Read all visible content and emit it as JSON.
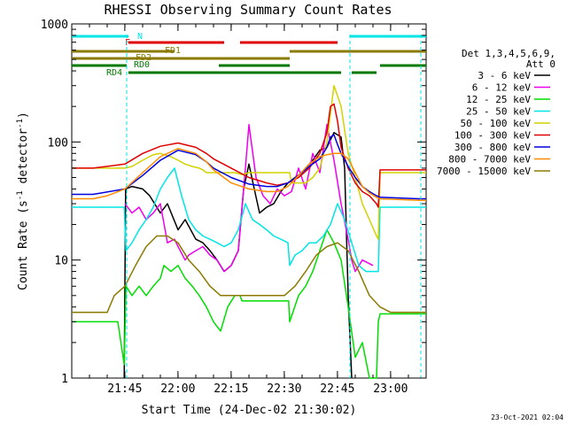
{
  "chart_data": {
    "type": "line",
    "title": "RHESSI Observing Summary Count Rates",
    "xlabel": "Start Time (24-Dec-02 21:30:02)",
    "ylabel": "Count Rate (s-1 detector-1)",
    "ylabel_parts": {
      "pre": "Count Rate (s",
      "sup1": "-1",
      "mid": " detector",
      "sup2": "-1",
      "post": ")"
    },
    "xscale": "linear",
    "yscale": "log",
    "xlim": [
      0,
      100
    ],
    "ylim": [
      1,
      1000
    ],
    "x_unit": "minutes since 21:30:02",
    "x_ticks": [
      {
        "value": 14.97,
        "label": "21:45"
      },
      {
        "value": 29.97,
        "label": "22:00"
      },
      {
        "value": 44.97,
        "label": "22:15"
      },
      {
        "value": 59.97,
        "label": "22:30"
      },
      {
        "value": 74.97,
        "label": "22:45"
      },
      {
        "value": 89.97,
        "label": "23:00"
      }
    ],
    "y_ticks": [
      {
        "value": 1,
        "label": "1"
      },
      {
        "value": 10,
        "label": "10"
      },
      {
        "value": 100,
        "label": "100"
      },
      {
        "value": 1000,
        "label": "1000"
      }
    ],
    "legend": {
      "placement": "right",
      "header": [
        "Det 1,3,4,5,6,9,",
        "Att 0"
      ],
      "entries": [
        {
          "label": "3 - 6 keV",
          "color": "#000000"
        },
        {
          "label": "6 - 12 keV",
          "color": "#ee00ee"
        },
        {
          "label": "12 - 25 keV",
          "color": "#00dd00"
        },
        {
          "label": "25 - 50 keV",
          "color": "#00e5e5"
        },
        {
          "label": "50 - 100 keV",
          "color": "#d2d200"
        },
        {
          "label": "100 - 300 keV",
          "color": "#e00000"
        },
        {
          "label": "300 - 800 keV",
          "color": "#0000e0"
        },
        {
          "label": "800 - 7000 keV",
          "color": "#ff8c00"
        },
        {
          "label": "7000 - 15000 keV",
          "color": "#8b7a00"
        }
      ]
    },
    "series": [
      {
        "name": "3 - 6 keV",
        "color": "#000000",
        "x": [
          14.8,
          15.2,
          17,
          20,
          22,
          25,
          27,
          30,
          32,
          35,
          37,
          39,
          41,
          43,
          45,
          47,
          48.5,
          50,
          51.5,
          53,
          55,
          57,
          59,
          61,
          63,
          65,
          66,
          68,
          70,
          72,
          74,
          76,
          77,
          78,
          79
        ],
        "y": [
          1,
          40,
          42,
          40,
          35,
          25,
          30,
          18,
          22,
          15,
          14,
          12,
          10,
          8,
          9,
          12,
          40,
          65,
          40,
          25,
          28,
          30,
          38,
          45,
          50,
          55,
          60,
          70,
          85,
          90,
          120,
          110,
          60,
          5,
          1
        ]
      },
      {
        "name": "6 - 12 keV",
        "color": "#ee00ee",
        "x": [
          15,
          17,
          19,
          21,
          23,
          25,
          27,
          29,
          30,
          32,
          33,
          35,
          37,
          39,
          41,
          43,
          45,
          47,
          49,
          50,
          52,
          54,
          56,
          58,
          60,
          62,
          64,
          66,
          68,
          70,
          72,
          74,
          76,
          78,
          79,
          80,
          82,
          85
        ],
        "y": [
          30,
          25,
          28,
          22,
          25,
          30,
          14,
          15,
          13,
          10,
          11,
          12,
          13,
          11,
          10,
          8,
          9,
          12,
          60,
          140,
          50,
          35,
          30,
          40,
          35,
          38,
          60,
          40,
          80,
          55,
          140,
          70,
          30,
          15,
          10,
          8,
          10,
          9
        ]
      },
      {
        "name": "12 - 25 keV",
        "color": "#00dd00",
        "x": [
          0,
          13,
          14.8,
          15.3,
          17,
          19,
          21,
          23,
          25,
          26,
          28,
          30,
          32,
          34,
          36,
          38,
          40,
          42,
          44,
          46,
          47.5,
          48,
          50,
          52,
          54,
          56,
          58,
          60,
          61.2,
          61.5,
          64,
          66,
          68,
          70,
          72,
          74,
          76,
          78,
          80,
          82,
          84,
          86,
          86.5,
          87,
          98,
          100
        ],
        "y": [
          3,
          3,
          1.3,
          6,
          5,
          6,
          5,
          6,
          7,
          9,
          8,
          9,
          7,
          6,
          5,
          4,
          3,
          2.5,
          4,
          5,
          5,
          4.5,
          4.5,
          4.5,
          4.5,
          4.5,
          4.5,
          4.5,
          4.5,
          3,
          5,
          6,
          8,
          12,
          18,
          14,
          10,
          4,
          1.5,
          2,
          1,
          1,
          3,
          3.5,
          3.5,
          3.5
        ]
      },
      {
        "name": "25 - 50 keV",
        "color": "#00e5e5",
        "x": [
          0,
          14.8,
          15.3,
          17,
          19,
          21,
          23,
          25,
          27,
          29,
          31,
          33,
          35,
          37,
          39,
          41,
          43,
          45,
          47,
          49,
          51,
          53,
          55,
          57,
          59,
          61,
          61.5,
          63,
          65,
          67,
          69,
          71,
          73,
          75,
          77,
          79,
          81,
          83,
          85,
          86.5,
          87,
          98,
          100
        ],
        "y": [
          28,
          28,
          12,
          14,
          18,
          22,
          28,
          40,
          50,
          60,
          35,
          22,
          18,
          16,
          15,
          14,
          13,
          14,
          18,
          30,
          22,
          20,
          18,
          16,
          15,
          14,
          9,
          11,
          12,
          14,
          14,
          16,
          20,
          30,
          22,
          14,
          9,
          8,
          8,
          8,
          28,
          28,
          28
        ]
      },
      {
        "name": "50 - 100 keV",
        "color": "#d2d200",
        "x": [
          0,
          15,
          17,
          20,
          23,
          25,
          28,
          30,
          32,
          34,
          36,
          37,
          38,
          42,
          46,
          48,
          50,
          52,
          54,
          56,
          58,
          60,
          61.5,
          62,
          66,
          68,
          70,
          72,
          74,
          76,
          78,
          80,
          82,
          84,
          86,
          86.5,
          87,
          98,
          100
        ],
        "y": [
          60,
          60,
          62,
          70,
          78,
          80,
          75,
          70,
          65,
          62,
          60,
          58,
          55,
          55,
          55,
          53,
          55,
          55,
          55,
          55,
          55,
          55,
          55,
          45,
          45,
          50,
          60,
          100,
          300,
          200,
          80,
          50,
          30,
          22,
          16,
          15,
          55,
          55,
          55
        ]
      },
      {
        "name": "100 - 300 keV",
        "color": "#e00000",
        "x": [
          0,
          6,
          15,
          20,
          25,
          30,
          35,
          38,
          40,
          45,
          50,
          55,
          58,
          61,
          64,
          67,
          70,
          72,
          73,
          74,
          75,
          76,
          78,
          80,
          82,
          84,
          86,
          86.5,
          87,
          98,
          100
        ],
        "y": [
          60,
          60,
          65,
          80,
          92,
          98,
          90,
          80,
          72,
          60,
          50,
          45,
          43,
          45,
          50,
          60,
          80,
          120,
          200,
          210,
          150,
          90,
          60,
          45,
          38,
          35,
          30,
          28,
          58,
          58,
          58
        ]
      },
      {
        "name": "300 - 800 keV",
        "color": "#0000e0",
        "x": [
          0,
          6,
          15,
          20,
          25,
          30,
          35,
          38,
          40,
          45,
          50,
          55,
          58,
          61,
          64,
          67,
          70,
          72,
          73,
          74,
          75,
          76,
          78,
          80,
          82,
          84,
          86,
          87,
          98,
          100
        ],
        "y": [
          36,
          36,
          40,
          52,
          70,
          85,
          78,
          68,
          60,
          50,
          44,
          42,
          42,
          45,
          52,
          62,
          72,
          90,
          110,
          115,
          95,
          80,
          62,
          50,
          42,
          38,
          35,
          34,
          33,
          33
        ]
      },
      {
        "name": "800 - 7000 keV",
        "color": "#ff8c00",
        "x": [
          0,
          6,
          10,
          15,
          20,
          25,
          30,
          35,
          38,
          40,
          45,
          50,
          55,
          58,
          61,
          64,
          67,
          70,
          72,
          74,
          76,
          78,
          80,
          82,
          84,
          86,
          87,
          98,
          100
        ],
        "y": [
          33,
          33,
          35,
          40,
          55,
          75,
          88,
          80,
          68,
          58,
          45,
          40,
          38,
          38,
          42,
          52,
          65,
          75,
          78,
          80,
          80,
          72,
          55,
          42,
          37,
          34,
          33,
          32,
          32
        ]
      },
      {
        "name": "7000 - 15000 keV",
        "color": "#8b7a00",
        "x": [
          0,
          10,
          12,
          15,
          18,
          21,
          24,
          27,
          30,
          33,
          36,
          39,
          42,
          45,
          48,
          51,
          54,
          57,
          60,
          63,
          66,
          69,
          72,
          75,
          78,
          81,
          84,
          87,
          90,
          93,
          96,
          100
        ],
        "y": [
          3.6,
          3.6,
          5,
          6,
          9,
          13,
          16,
          16,
          14,
          10,
          8,
          6,
          5,
          5,
          5,
          5,
          5,
          5,
          5,
          6,
          8,
          11,
          13,
          14,
          12,
          8,
          5,
          4,
          3.6,
          3.6,
          3.6,
          3.6
        ]
      }
    ],
    "state_bars": [
      {
        "label": "N",
        "color": "#00e5e5",
        "segments": [
          [
            0,
            16
          ],
          [
            78.5,
            100
          ]
        ]
      },
      {
        "label": "F",
        "color": "#e00000",
        "segments": [
          [
            16,
            43
          ],
          [
            47.5,
            75
          ]
        ]
      },
      {
        "label": "FD1",
        "color": "#8b7a00",
        "segments": [
          [
            0,
            29
          ],
          [
            61.5,
            100
          ]
        ]
      },
      {
        "label": "FD2",
        "color": "#8b7a00",
        "segments": [
          [
            0,
            61.5
          ]
        ]
      },
      {
        "label": "RD0",
        "color": "#007a00",
        "segments": [
          [
            0,
            15.5
          ],
          [
            41.5,
            61.5
          ],
          [
            87,
            100
          ]
        ]
      },
      {
        "label": "RD4",
        "color": "#007a00",
        "segments": [
          [
            16,
            76
          ],
          [
            79,
            86
          ]
        ]
      }
    ],
    "vlines": [
      15.5,
      78.5,
      98.5
    ],
    "footer_timestamp": "23-Oct-2021 02:04"
  }
}
